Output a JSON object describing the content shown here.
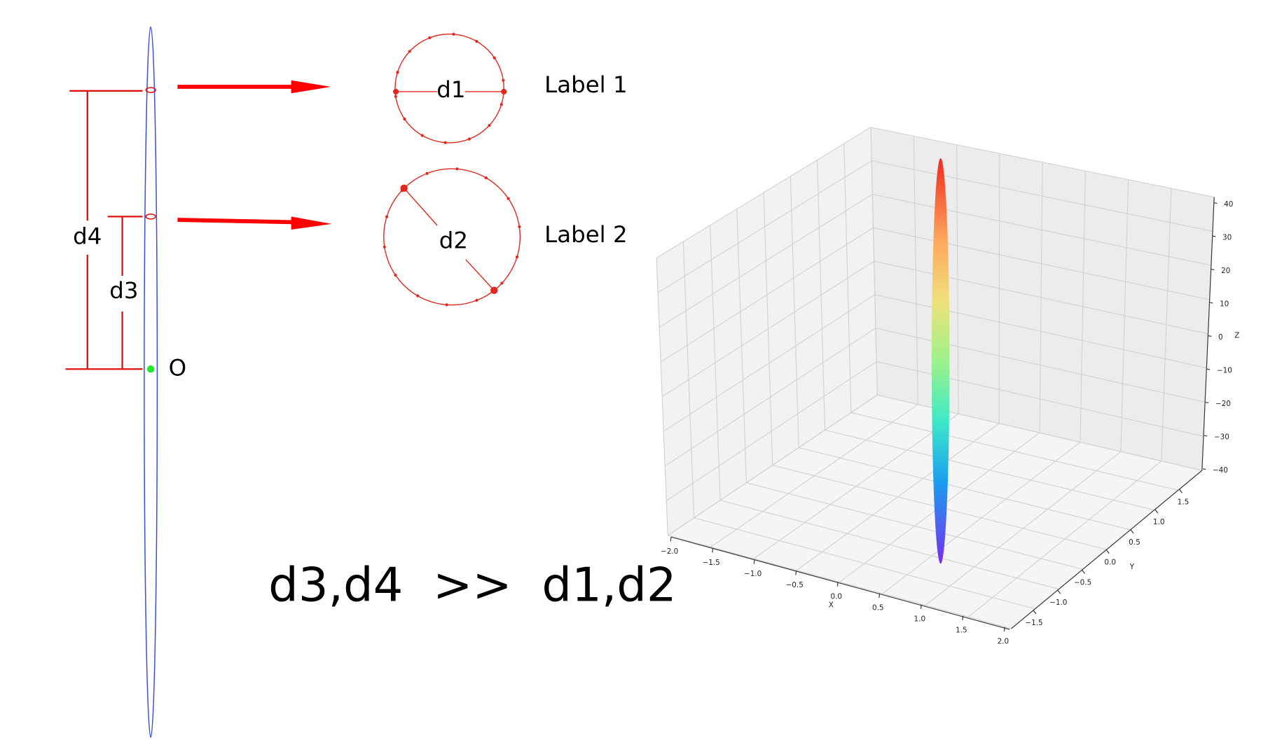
{
  "left_diagram": {
    "d4_label": "d4",
    "d3_label": "d3",
    "origin_label": "O"
  },
  "circles": [
    {
      "diameter_label": "d1",
      "caption": "Label 1"
    },
    {
      "diameter_label": "d2",
      "caption": "Label 2"
    }
  ],
  "relation": "d3,d4  >>  d1,d2",
  "plot3d": {
    "x_axis_label": "X",
    "y_axis_label": "Y",
    "z_axis_label": "Z",
    "x_ticks": [
      "−2.0",
      "−1.5",
      "−1.0",
      "−0.5",
      "0.0",
      "0.5",
      "1.0",
      "1.5",
      "2.0"
    ],
    "y_ticks": [
      "−1.5",
      "−1.0",
      "−0.5",
      "0.0",
      "0.5",
      "1.0",
      "1.5"
    ],
    "z_ticks": [
      "−40",
      "−30",
      "−20",
      "−10",
      "0",
      "10",
      "20",
      "30",
      "40"
    ]
  }
}
